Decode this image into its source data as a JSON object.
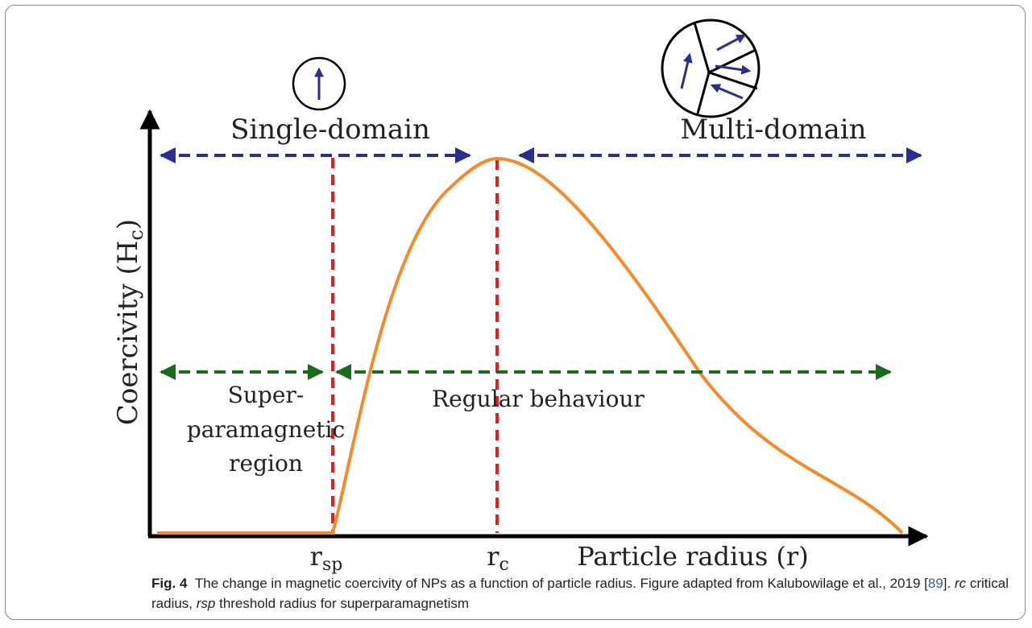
{
  "figure": {
    "y_axis_label": {
      "text": "Coercivity (H",
      "subscript": "c",
      "close": ")"
    },
    "x_axis_label": "Particle radius (r)",
    "regions": {
      "single_domain": "Single-domain",
      "multi_domain": "Multi-domain",
      "superparamagnetic": [
        "Super-",
        "paramagnetic",
        "region"
      ],
      "regular": "Regular behaviour"
    },
    "markers": [
      {
        "symbol": "r",
        "subscript": "sp"
      },
      {
        "symbol": "r",
        "subscript": "c"
      }
    ]
  },
  "caption": {
    "label": "Fig. 4",
    "text1": "The change in magnetic coercivity of NPs as a function of particle radius. Figure adapted from Kalubowilage et al., 2019 [",
    "ref": "89",
    "text2": "]. ",
    "rc": "rc",
    "text3": " critical radius, ",
    "rsp": "rsp",
    "text4": " threshold radius for superparamagnetism"
  }
}
